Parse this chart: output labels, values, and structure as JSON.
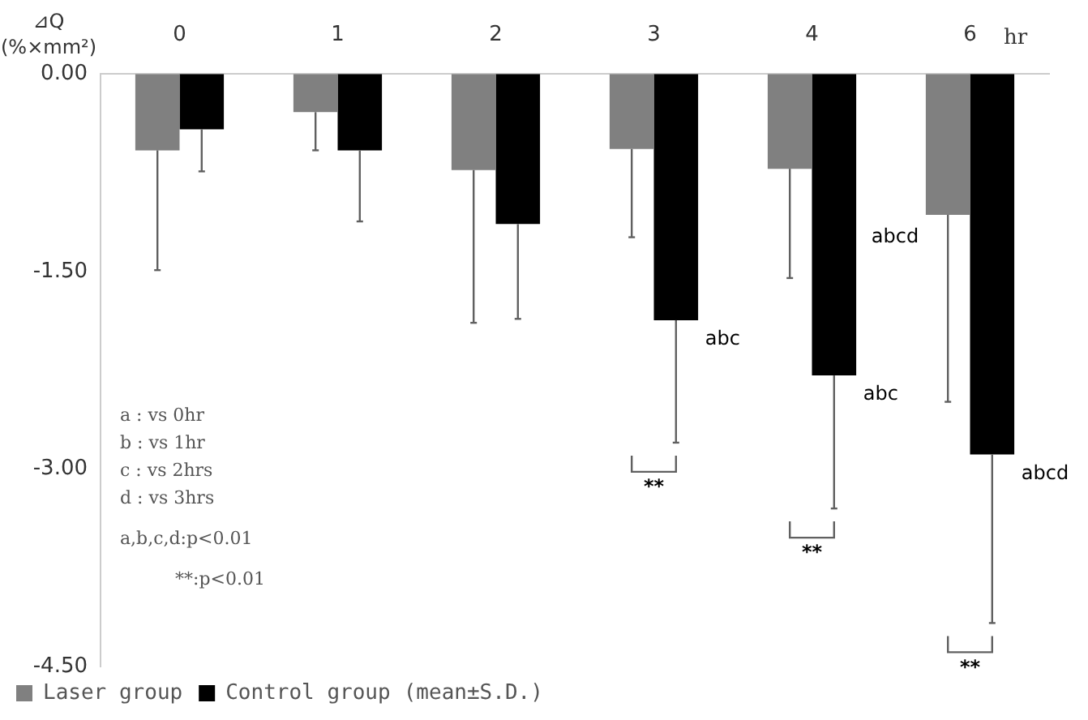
{
  "chart_data": {
    "type": "bar",
    "categories": [
      "0",
      "1",
      "2",
      "3",
      "4",
      "6"
    ],
    "xlabel": "hr",
    "ylabel": "⊿Q\n(%×mm²)",
    "ylim": [
      -4.5,
      0
    ],
    "yticks": [
      {
        "value": 0,
        "label": "0.00"
      },
      {
        "value": -1.5,
        "label": "-1.50"
      },
      {
        "value": -3,
        "label": "-3.00"
      },
      {
        "value": -4.5,
        "label": "-4.50"
      }
    ],
    "series": [
      {
        "name": "Laser group",
        "color": "#808080",
        "values": [
          -0.58,
          -0.29,
          -0.73,
          -0.57,
          -0.72,
          -1.07
        ],
        "errors": [
          [
            -1.49,
            -0.58
          ],
          [
            -0.58,
            -0.29
          ],
          [
            -1.89,
            -0.73
          ],
          [
            -1.24,
            -0.57
          ],
          [
            -1.55,
            -0.72
          ],
          [
            -2.49,
            -1.07
          ]
        ]
      },
      {
        "name": "Control group",
        "color": "#000000",
        "values": [
          -0.42,
          -0.58,
          -1.14,
          -1.87,
          -2.29,
          -2.89
        ],
        "errors": [
          [
            -0.74,
            -0.42
          ],
          [
            -1.12,
            -0.58
          ],
          [
            -1.86,
            -1.14
          ],
          [
            -2.8,
            -1.87
          ],
          [
            -3.3,
            -2.29
          ],
          [
            -4.17,
            -2.89
          ]
        ]
      }
    ],
    "annotations": [
      "a : vs 0hr",
      "b : vs 1hr",
      "c : vs 2hrs",
      "d : vs 3hrs",
      "a,b,c,d:p<0.01",
      "**:p<0.01",
      {
        "text": "abc",
        "x": "3",
        "y": -1.87
      },
      {
        "text": "abc",
        "x": "4",
        "y": -2.29
      },
      {
        "text": "abcd",
        "x": "6",
        "y": -1.07
      },
      {
        "text": "abcd",
        "x": "6",
        "y": -2.89
      },
      "**",
      "**",
      "**",
      "(mean±S.D.)"
    ],
    "legend": "bottom",
    "grid": false
  }
}
